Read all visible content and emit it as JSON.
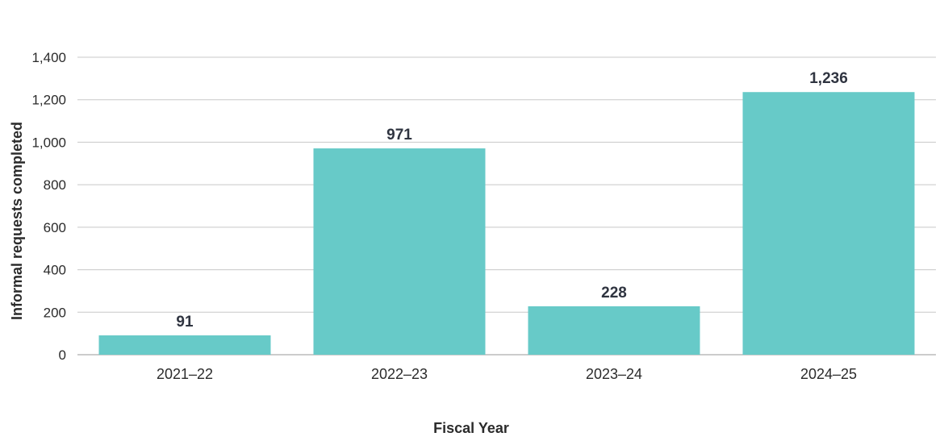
{
  "chart_data": {
    "type": "bar",
    "title": "",
    "xlabel": "Fiscal Year",
    "ylabel": "Informal requests completed",
    "categories": [
      "2021–22",
      "2022–23",
      "2023–24",
      "2024–25"
    ],
    "values": [
      91,
      971,
      228,
      1236
    ],
    "data_labels": [
      "91",
      "971",
      "228",
      "1,236"
    ],
    "ylim": [
      0,
      1400
    ],
    "yticks": [
      0,
      200,
      400,
      600,
      800,
      1000,
      1200,
      1400
    ],
    "ytick_labels": [
      "0",
      "200",
      "400",
      "600",
      "800",
      "1,000",
      "1,200",
      "1,400"
    ],
    "grid": true,
    "legend": "none",
    "bar_color": "#67cac8"
  }
}
